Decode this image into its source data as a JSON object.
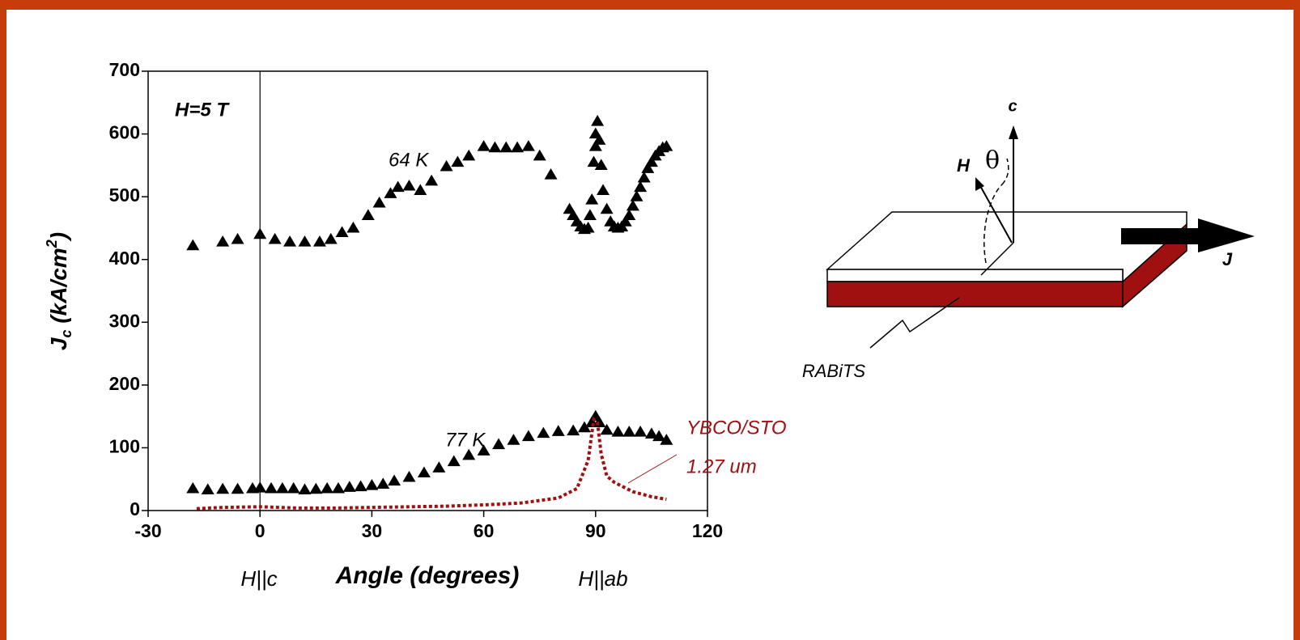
{
  "chart_data": {
    "type": "scatter",
    "ylabel_parts": [
      "J",
      "c",
      " (kA/cm",
      "2",
      ")"
    ],
    "xlabel": "Angle (degrees)",
    "field_label": "H=5 T",
    "x_left_label": "H||c",
    "x_right_label": "H||ab",
    "series_note": "1.27 um",
    "xlim": [
      -30,
      120
    ],
    "ylim": [
      0,
      700
    ],
    "xticks": [
      -30,
      0,
      30,
      60,
      90,
      120
    ],
    "yticks": [
      0,
      100,
      200,
      300,
      400,
      500,
      600,
      700
    ],
    "vlines": [
      0
    ],
    "series": [
      {
        "name": "64 K",
        "color": "#000000",
        "marker": "triangle",
        "x": [
          -18,
          -10,
          -6,
          0,
          4,
          8,
          12,
          16,
          19,
          22,
          25,
          29,
          32,
          35,
          37,
          40,
          43,
          46,
          50,
          53,
          56,
          60,
          63,
          66,
          69,
          72,
          75,
          78,
          83,
          84,
          85,
          86,
          87,
          88,
          88.5,
          89,
          89.5,
          90,
          90,
          90.5,
          91,
          91.5,
          92,
          93,
          94,
          95,
          96,
          97,
          98,
          99,
          100,
          101,
          102,
          103,
          104,
          105,
          106,
          107,
          108,
          109
        ],
        "values": [
          422,
          428,
          432,
          440,
          432,
          428,
          428,
          428,
          432,
          443,
          450,
          470,
          490,
          505,
          515,
          517,
          510,
          525,
          548,
          555,
          565,
          580,
          578,
          578,
          578,
          580,
          565,
          535,
          480,
          470,
          460,
          452,
          448,
          450,
          470,
          495,
          555,
          580,
          600,
          620,
          590,
          550,
          510,
          480,
          460,
          452,
          450,
          452,
          460,
          470,
          485,
          500,
          515,
          530,
          545,
          555,
          565,
          572,
          578,
          580
        ]
      },
      {
        "name": "77 K",
        "color": "#000000",
        "marker": "triangle",
        "x": [
          -18,
          -14,
          -10,
          -6,
          -2,
          0,
          3,
          6,
          9,
          12,
          15,
          18,
          21,
          24,
          27,
          30,
          33,
          36,
          40,
          44,
          48,
          52,
          56,
          60,
          64,
          68,
          72,
          76,
          80,
          84,
          87,
          89,
          90,
          91,
          93,
          96,
          99,
          102,
          105,
          107,
          109
        ],
        "values": [
          35,
          33,
          34,
          34,
          35,
          36,
          35,
          35,
          35,
          33,
          34,
          35,
          35,
          37,
          38,
          40,
          42,
          47,
          53,
          60,
          68,
          78,
          88,
          95,
          105,
          112,
          118,
          123,
          126,
          127,
          132,
          140,
          150,
          140,
          128,
          125,
          125,
          125,
          122,
          118,
          112
        ]
      },
      {
        "name": "YBCO/STO",
        "color": "#a01010",
        "marker": "dotted-line",
        "x": [
          -17,
          -10,
          0,
          10,
          20,
          30,
          40,
          50,
          60,
          70,
          80,
          85,
          88,
          89.5,
          90.5,
          91.5,
          93,
          95,
          100,
          105,
          109
        ],
        "values": [
          3,
          5,
          6,
          4,
          4,
          5,
          6,
          7,
          9,
          12,
          20,
          35,
          80,
          145,
          140,
          90,
          55,
          45,
          30,
          22,
          18
        ]
      }
    ]
  },
  "diagram": {
    "c_label": "c",
    "h_label": "H",
    "theta_label": "θ",
    "j_label": "J",
    "substrate_label": "RABiTS"
  }
}
